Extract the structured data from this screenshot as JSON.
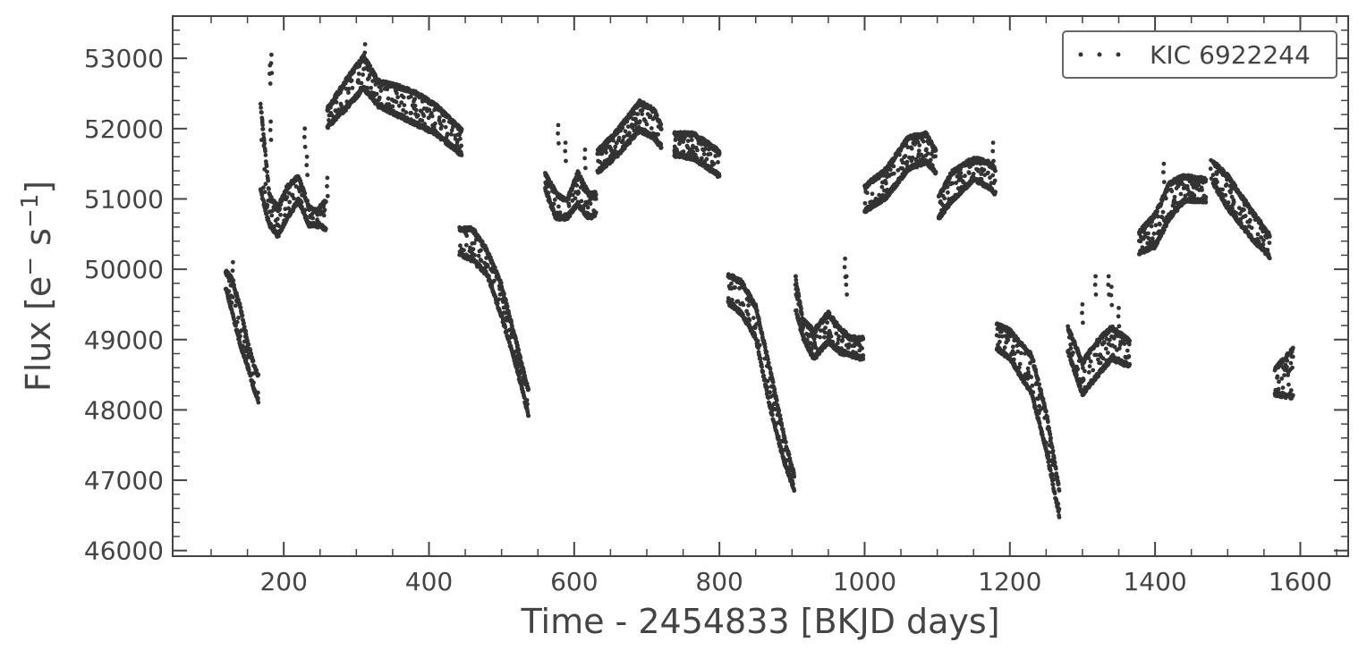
{
  "chart_data": {
    "type": "scatter",
    "title": "",
    "xlabel": "Time - 2454833 [BKJD days]",
    "ylabel_parts": {
      "base": "Flux [e",
      "sup1": "−",
      "mid": " s",
      "sup2": "−1",
      "end": "]"
    },
    "xlim": [
      47,
      1666
    ],
    "ylim": [
      45920,
      53600
    ],
    "x_ticks": [
      200,
      400,
      600,
      800,
      1000,
      1200,
      1400,
      1600
    ],
    "y_ticks": [
      46000,
      47000,
      48000,
      49000,
      50000,
      51000,
      52000,
      53000
    ],
    "x_tick_labels": [
      "200",
      "400",
      "600",
      "800",
      "1000",
      "1200",
      "1400",
      "1600"
    ],
    "y_tick_labels": [
      "46000",
      "47000",
      "48000",
      "49000",
      "50000",
      "51000",
      "52000",
      "53000"
    ],
    "grid": false,
    "legend_position": "top-right",
    "marker_color": "#333333",
    "series": [
      {
        "name": "KIC 6922244",
        "segments": [
          {
            "band": [
              [
                120,
                50000,
                49700
              ],
              [
                128,
                49900,
                49400
              ],
              [
                140,
                49500,
                48900
              ],
              [
                150,
                49000,
                48600
              ],
              [
                158,
                48700,
                48300
              ],
              [
                165,
                48500,
                48100
              ]
            ]
          },
          {
            "band": [
              [
                168,
                52400,
                51100
              ],
              [
                180,
                51100,
                50600
              ],
              [
                192,
                50900,
                50450
              ],
              [
                205,
                51200,
                50700
              ],
              [
                220,
                51350,
                50950
              ],
              [
                235,
                50900,
                50600
              ],
              [
                245,
                50850,
                50600
              ],
              [
                258,
                51000,
                50550
              ]
            ]
          },
          {
            "band": [
              [
                260,
                52300,
                52000
              ],
              [
                285,
                52700,
                52250
              ],
              [
                310,
                53050,
                52550
              ],
              [
                330,
                52700,
                52300
              ],
              [
                350,
                52650,
                52200
              ],
              [
                380,
                52550,
                52050
              ],
              [
                410,
                52350,
                51900
              ],
              [
                445,
                52000,
                51600
              ]
            ]
          },
          {
            "band": [
              [
                442,
                50600,
                50200
              ],
              [
                460,
                50600,
                50100
              ],
              [
                480,
                50300,
                49900
              ],
              [
                500,
                49800,
                49300
              ],
              [
                520,
                49000,
                48600
              ],
              [
                537,
                48300,
                47900
              ]
            ]
          },
          {
            "band": [
              [
                560,
                51400,
                51100
              ],
              [
                575,
                51100,
                50700
              ],
              [
                590,
                51000,
                50700
              ],
              [
                605,
                51400,
                50900
              ],
              [
                620,
                51100,
                50700
              ],
              [
                630,
                51100,
                50750
              ]
            ]
          },
          {
            "band": [
              [
                632,
                51700,
                51350
              ],
              [
                660,
                52000,
                51600
              ],
              [
                690,
                52400,
                51950
              ],
              [
                710,
                52300,
                51850
              ],
              [
                720,
                52050,
                51700
              ]
            ]
          },
          {
            "band": [
              [
                738,
                51950,
                51600
              ],
              [
                765,
                51950,
                51550
              ],
              [
                800,
                51700,
                51300
              ]
            ]
          },
          {
            "band": [
              [
                812,
                49950,
                49500
              ],
              [
                830,
                49850,
                49350
              ],
              [
                850,
                49500,
                49000
              ],
              [
                870,
                48600,
                48000
              ],
              [
                890,
                47600,
                47200
              ],
              [
                903,
                47100,
                46850
              ]
            ]
          },
          {
            "band": [
              [
                905,
                49900,
                49400
              ],
              [
                915,
                49300,
                49000
              ],
              [
                930,
                49150,
                48700
              ],
              [
                950,
                49400,
                48950
              ],
              [
                965,
                49200,
                48800
              ],
              [
                980,
                49050,
                48750
              ],
              [
                998,
                49050,
                48700
              ]
            ]
          },
          {
            "band": [
              [
                1000,
                51200,
                50800
              ],
              [
                1030,
                51450,
                51000
              ],
              [
                1060,
                51900,
                51400
              ],
              [
                1085,
                51950,
                51500
              ],
              [
                1098,
                51700,
                51350
              ]
            ]
          },
          {
            "band": [
              [
                1102,
                51050,
                50700
              ],
              [
                1120,
                51400,
                50950
              ],
              [
                1150,
                51600,
                51250
              ],
              [
                1170,
                51550,
                51150
              ],
              [
                1180,
                51450,
                51050
              ]
            ]
          },
          {
            "band": [
              [
                1182,
                49250,
                48850
              ],
              [
                1200,
                49150,
                48700
              ],
              [
                1230,
                48800,
                48200
              ],
              [
                1250,
                48000,
                47400
              ],
              [
                1268,
                46900,
                46450
              ]
            ]
          },
          {
            "band": [
              [
                1280,
                49200,
                48800
              ],
              [
                1300,
                48700,
                48200
              ],
              [
                1320,
                49000,
                48450
              ],
              [
                1340,
                49200,
                48700
              ],
              [
                1365,
                49000,
                48600
              ]
            ]
          },
          {
            "band": [
              [
                1378,
                50550,
                50200
              ],
              [
                1400,
                50800,
                50300
              ],
              [
                1420,
                51250,
                50700
              ],
              [
                1440,
                51350,
                50950
              ],
              [
                1470,
                51300,
                50950
              ]
            ]
          },
          {
            "band": [
              [
                1480,
                51550,
                51200
              ],
              [
                1500,
                51350,
                50850
              ],
              [
                1530,
                50900,
                50450
              ],
              [
                1558,
                50500,
                50150
              ]
            ]
          },
          {
            "band": [
              [
                1565,
                48600,
                48200
              ],
              [
                1590,
                48900,
                48150
              ]
            ]
          }
        ],
        "spikes": [
          [
            183,
            53050
          ],
          [
            181,
            52900
          ],
          [
            182,
            52100
          ],
          [
            229,
            52000
          ],
          [
            232,
            51600
          ],
          [
            260,
            51300
          ],
          [
            312,
            53200
          ],
          [
            130,
            50100
          ],
          [
            578,
            52050
          ],
          [
            588,
            51800
          ],
          [
            615,
            51700
          ],
          [
            642,
            51800
          ],
          [
            905,
            49900
          ],
          [
            973,
            50150
          ],
          [
            975,
            49900
          ],
          [
            1177,
            51800
          ],
          [
            1318,
            49900
          ],
          [
            1300,
            49500
          ],
          [
            1336,
            49900
          ],
          [
            1340,
            49750
          ],
          [
            1350,
            49450
          ],
          [
            1477,
            51550
          ],
          [
            1485,
            51500
          ],
          [
            1412,
            51500
          ]
        ]
      }
    ]
  }
}
